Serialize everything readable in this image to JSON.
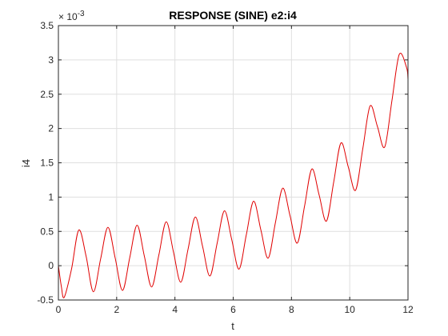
{
  "chart_data": {
    "type": "line",
    "title": "RESPONSE (SINE) e2:i4",
    "xlabel": "t",
    "ylabel": "i4",
    "y_exponent_label": "× 10",
    "y_exponent_power": "-3",
    "xlim": [
      0,
      12
    ],
    "ylim": [
      -0.5,
      3.5
    ],
    "y_scale_factor": 0.001,
    "grid": true,
    "x_ticks": [
      0,
      2,
      4,
      6,
      8,
      10,
      12
    ],
    "x_tick_labels": [
      "0",
      "2",
      "4",
      "6",
      "8",
      "10",
      "12"
    ],
    "y_ticks": [
      -0.5,
      0,
      0.5,
      1,
      1.5,
      2,
      2.5,
      3,
      3.5
    ],
    "y_tick_labels": [
      "-0.5",
      "0",
      "0.5",
      "1",
      "1.5",
      "2",
      "2.5",
      "3",
      "3.5"
    ],
    "series": [
      {
        "color": "#e00000",
        "x": [
          0,
          0.1,
          0.2,
          0.45,
          0.7,
          0.95,
          1.2,
          1.45,
          1.7,
          1.95,
          2.2,
          2.45,
          2.7,
          2.95,
          3.2,
          3.45,
          3.7,
          3.95,
          4.2,
          4.45,
          4.7,
          4.95,
          5.2,
          5.45,
          5.7,
          5.95,
          6.2,
          6.45,
          6.7,
          6.95,
          7.2,
          7.45,
          7.7,
          7.95,
          8.2,
          8.45,
          8.7,
          8.95,
          9.2,
          9.45,
          9.7,
          9.95,
          10.2,
          10.45,
          10.7,
          10.95,
          11.2,
          11.45,
          11.7,
          11.95,
          12.0
        ],
        "y": [
          0.0,
          -0.3,
          -0.46,
          -0.05,
          0.52,
          0.14,
          -0.38,
          0.1,
          0.56,
          0.11,
          -0.36,
          0.12,
          0.59,
          0.14,
          -0.31,
          0.16,
          0.64,
          0.2,
          -0.24,
          0.24,
          0.71,
          0.28,
          -0.15,
          0.33,
          0.8,
          0.38,
          -0.05,
          0.45,
          0.94,
          0.52,
          0.11,
          0.63,
          1.13,
          0.73,
          0.33,
          0.87,
          1.41,
          1.03,
          0.65,
          1.22,
          1.79,
          1.44,
          1.1,
          1.71,
          2.33,
          2.03,
          1.73,
          2.41,
          3.08,
          2.89,
          2.72
        ]
      }
    ]
  }
}
